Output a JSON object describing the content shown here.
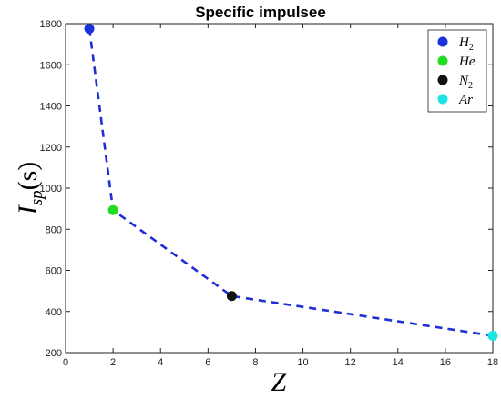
{
  "chart_data": {
    "type": "scatter",
    "title": "Specific impulsee",
    "xlabel": "Z",
    "ylabel": {
      "main": "I",
      "sub": "sp",
      "rest": "(s)"
    },
    "xlim": [
      0,
      18
    ],
    "ylim": [
      200,
      1800
    ],
    "xticks": [
      0,
      2,
      4,
      6,
      8,
      10,
      12,
      14,
      16,
      18
    ],
    "yticks": [
      200,
      400,
      600,
      800,
      1000,
      1200,
      1400,
      1600,
      1800
    ],
    "grid": false,
    "legend_position": "top-right",
    "line": {
      "style": "dashed",
      "color": "#1f2fd6",
      "x": [
        1,
        2,
        7,
        18
      ],
      "y": [
        1775,
        893,
        475,
        282
      ]
    },
    "series": [
      {
        "name": {
          "main": "H",
          "sub": "2"
        },
        "x": 1,
        "y": 1775,
        "color": "#1a32d9"
      },
      {
        "name": {
          "main": "He",
          "sub": ""
        },
        "x": 2,
        "y": 893,
        "color": "#22dd22"
      },
      {
        "name": {
          "main": "N",
          "sub": "2"
        },
        "x": 7,
        "y": 475,
        "color": "#111111"
      },
      {
        "name": {
          "main": "Ar",
          "sub": ""
        },
        "x": 18,
        "y": 282,
        "color": "#1de5e5"
      }
    ]
  }
}
